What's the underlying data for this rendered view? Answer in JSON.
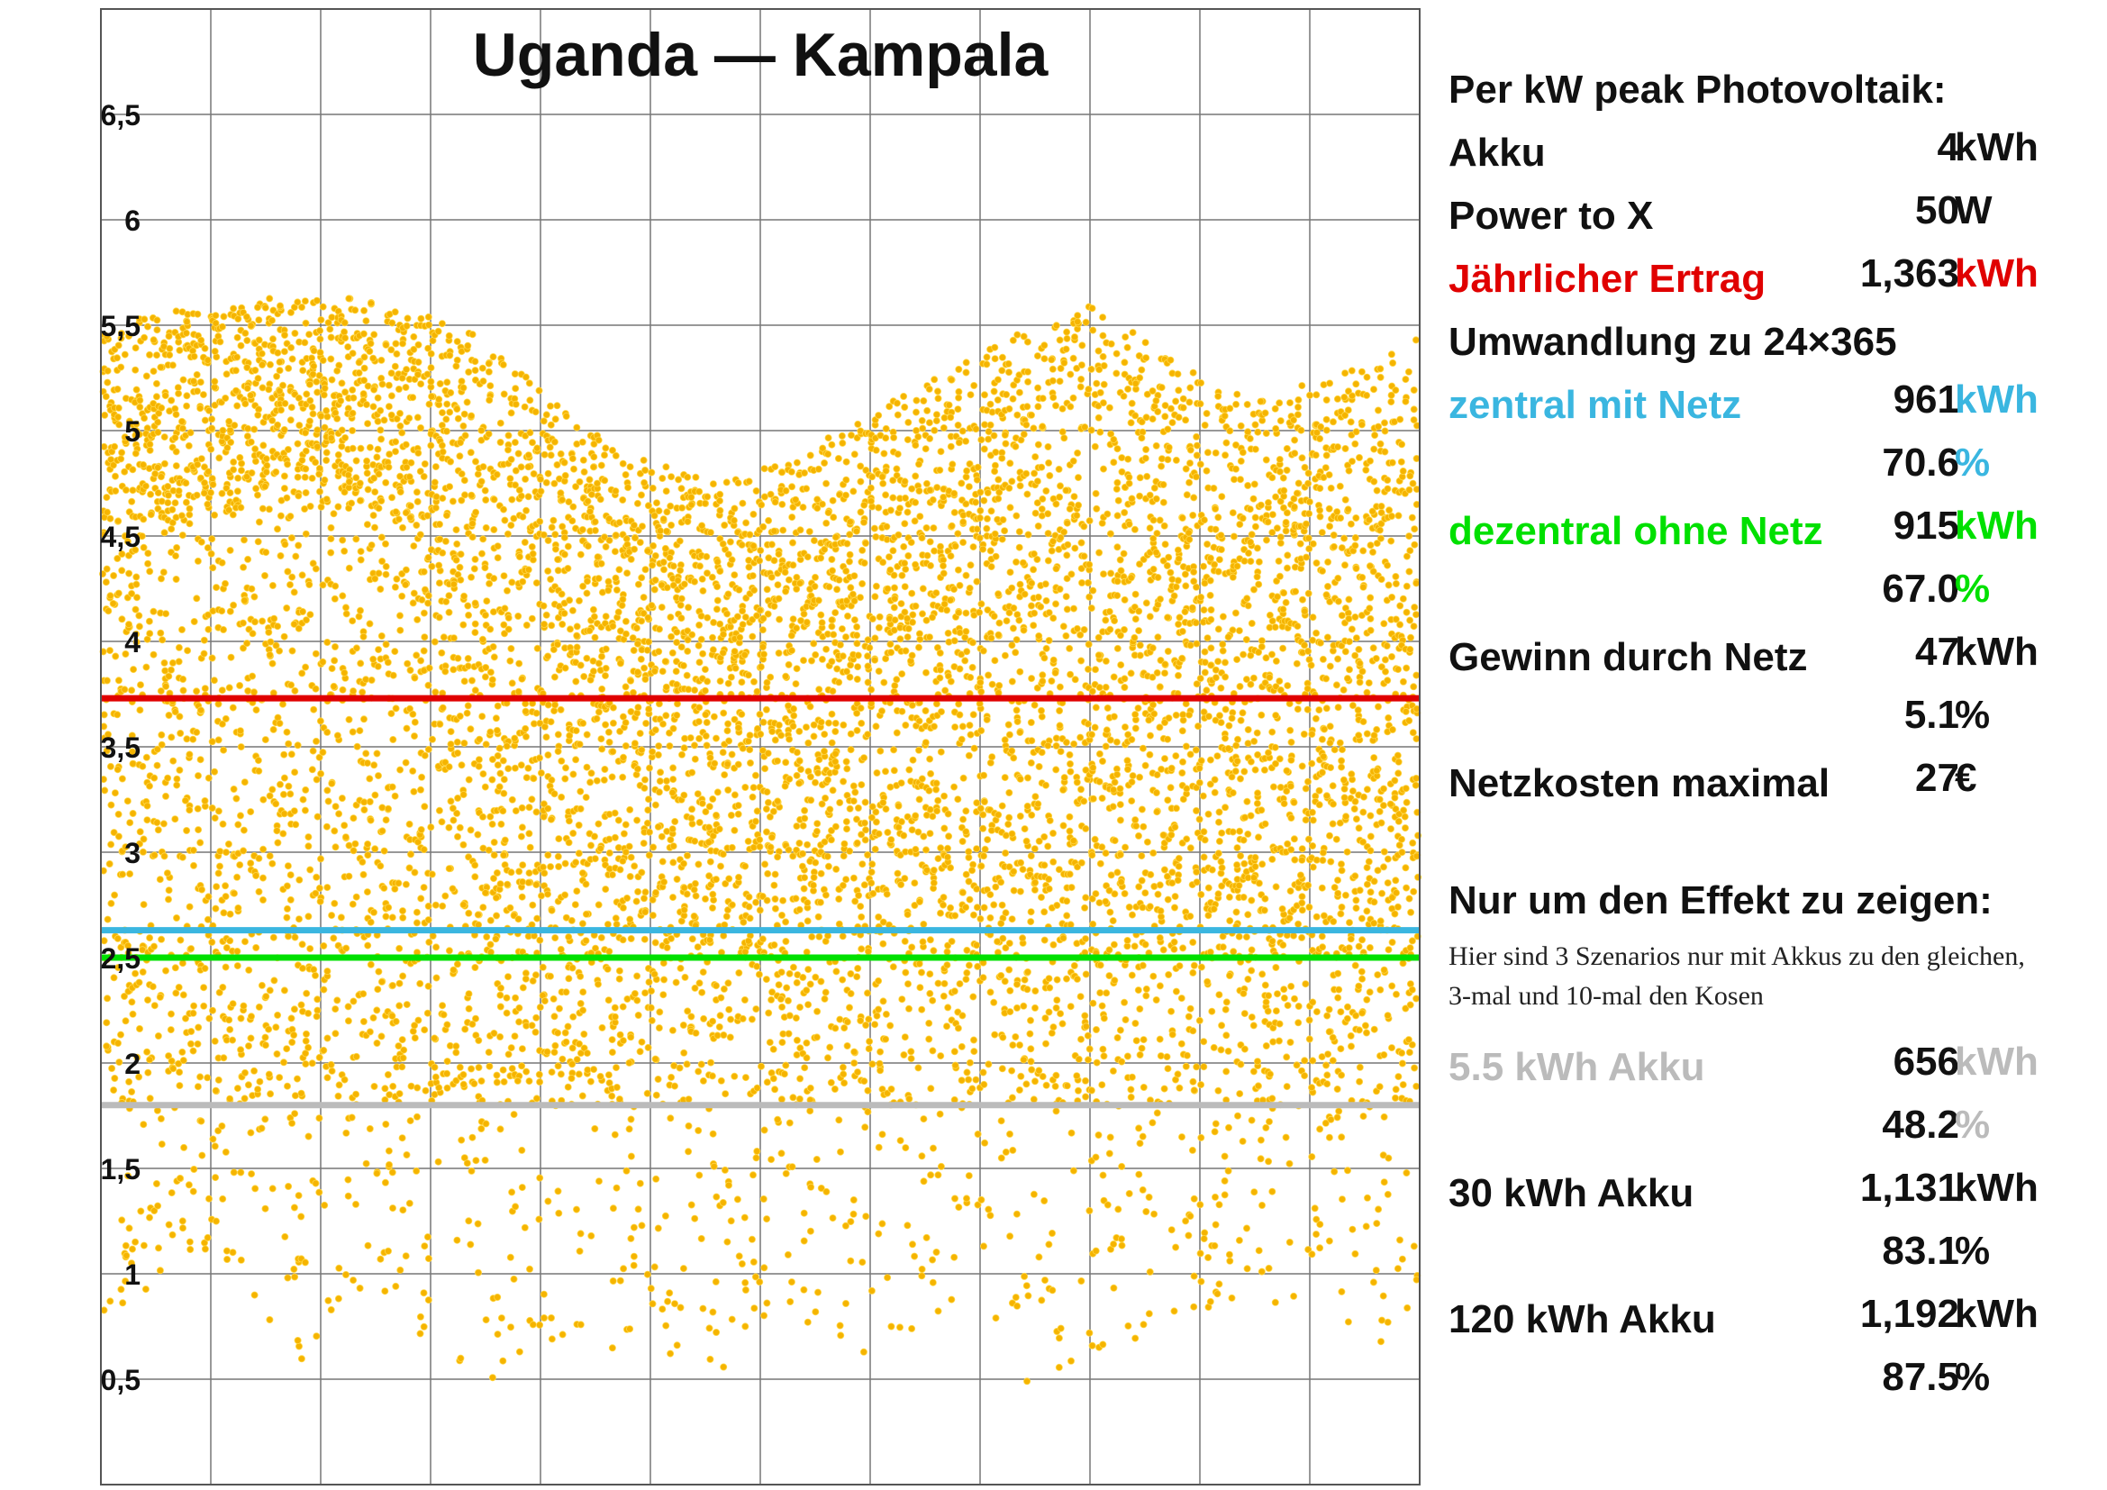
{
  "chart_data": {
    "type": "scatter",
    "title": "Uganda — Kampala",
    "x_grid_lines": 12,
    "ylim": [
      0,
      7
    ],
    "y_ticks": [
      0.5,
      1,
      1.5,
      2,
      2.5,
      3,
      3.5,
      4,
      4.5,
      5,
      5.5,
      6,
      6.5
    ],
    "y_tick_labels": [
      "0,5",
      "1",
      "1,5",
      "2",
      "2,5",
      "3",
      "3,5",
      "4",
      "4,5",
      "5",
      "5,5",
      "6",
      "6,5"
    ],
    "grid": true,
    "x": [],
    "y": [],
    "x_range": [
      1,
      365
    ],
    "daily_trend": {
      "points_per_day": 24,
      "day": [
        1,
        30,
        60,
        80,
        100,
        122,
        145,
        170,
        190,
        215,
        240,
        260,
        275,
        300,
        320,
        340,
        365
      ],
      "envelope_max": [
        5.5,
        5.6,
        5.65,
        5.6,
        5.5,
        5.2,
        4.9,
        4.75,
        4.85,
        5.1,
        5.35,
        5.5,
        5.6,
        5.3,
        5.15,
        5.25,
        5.45
      ],
      "dense_band_low": [
        4.5,
        4.6,
        4.7,
        4.6,
        4.2,
        3.9,
        3.8,
        3.7,
        3.8,
        3.9,
        4.0,
        4.0,
        4.0,
        3.9,
        3.8,
        3.8,
        4.0
      ],
      "sparse_min": [
        0.75,
        1.1,
        0.5,
        0.9,
        0.35,
        0.7,
        0.6,
        0.5,
        0.8,
        0.5,
        0.9,
        0.35,
        0.5,
        0.8,
        0.9,
        0.75,
        0.6
      ]
    },
    "reference_lines": [
      {
        "y": 3.73,
        "color": "#e00000"
      },
      {
        "y": 2.63,
        "color": "#3ab6e0"
      },
      {
        "y": 2.5,
        "color": "#00e000"
      },
      {
        "y": 1.8,
        "color": "#bbbbbb"
      }
    ],
    "point_color": "#f5b400",
    "point_stroke": "#ffd84a"
  },
  "panel": {
    "rows": [
      {
        "type": "heading",
        "text": "Per kW peak Photovoltaik:",
        "color": "#111111"
      },
      {
        "type": "row",
        "label": "Akku",
        "value": "4",
        "unit": "kWh",
        "label_color": "#111111",
        "value_color": "#111111",
        "unit_color": "#111111"
      },
      {
        "type": "row",
        "label": "Power to X",
        "value": "50",
        "unit": "W",
        "label_color": "#111111",
        "value_color": "#111111",
        "unit_color": "#111111"
      },
      {
        "type": "row",
        "label": "Jährlicher Ertrag",
        "value": "1,363",
        "unit": "kWh",
        "label_color": "#e00000",
        "value_color": "#111111",
        "unit_color": "#e00000"
      },
      {
        "type": "heading",
        "text": "Umwandlung zu 24×365",
        "color": "#111111"
      },
      {
        "type": "row",
        "label": "zentral mit Netz",
        "value": "961",
        "unit": "kWh",
        "label_color": "#3ab6e0",
        "value_color": "#111111",
        "unit_color": "#3ab6e0"
      },
      {
        "type": "row",
        "label": "",
        "value": "70.6",
        "unit": "%",
        "label_color": "#111111",
        "value_color": "#111111",
        "unit_color": "#3ab6e0"
      },
      {
        "type": "row",
        "label": "dezentral ohne Netz",
        "value": "915",
        "unit": "kWh",
        "label_color": "#00e000",
        "value_color": "#111111",
        "unit_color": "#00e000"
      },
      {
        "type": "row",
        "label": "",
        "value": "67.0",
        "unit": "%",
        "label_color": "#111111",
        "value_color": "#111111",
        "unit_color": "#00e000"
      },
      {
        "type": "row",
        "label": "Gewinn durch Netz",
        "value": "47",
        "unit": "kWh",
        "label_color": "#111111",
        "value_color": "#111111",
        "unit_color": "#111111"
      },
      {
        "type": "row",
        "label": "",
        "value": "5.1",
        "unit": "%",
        "label_color": "#111111",
        "value_color": "#111111",
        "unit_color": "#111111"
      },
      {
        "type": "row",
        "label": "Netzkosten maximal",
        "value": "27",
        "unit": "€",
        "label_color": "#111111",
        "value_color": "#111111",
        "unit_color": "#111111"
      },
      {
        "type": "heading",
        "text": "Nur um den Effekt zu zeigen:",
        "color": "#111111"
      },
      {
        "type": "note",
        "text": "Hier sind 3 Szenarios nur mit Akkus zu den gleichen, 3-mal und 10-mal den Kosen"
      },
      {
        "type": "row",
        "label": "5.5 kWh Akku",
        "value": "656",
        "unit": "kWh",
        "label_color": "#bbbbbb",
        "value_color": "#111111",
        "unit_color": "#bbbbbb"
      },
      {
        "type": "row",
        "label": "",
        "value": "48.2",
        "unit": "%",
        "label_color": "#111111",
        "value_color": "#111111",
        "unit_color": "#bbbbbb"
      },
      {
        "type": "row",
        "label": "30 kWh Akku",
        "value": "1,131",
        "unit": "kWh",
        "label_color": "#111111",
        "value_color": "#111111",
        "unit_color": "#111111"
      },
      {
        "type": "row",
        "label": "",
        "value": "83.1",
        "unit": "%",
        "label_color": "#111111",
        "value_color": "#111111",
        "unit_color": "#111111"
      },
      {
        "type": "row",
        "label": "120 kWh Akku",
        "value": "1,192",
        "unit": "kWh",
        "label_color": "#111111",
        "value_color": "#111111",
        "unit_color": "#111111"
      },
      {
        "type": "row",
        "label": "",
        "value": "87.5",
        "unit": "%",
        "label_color": "#111111",
        "value_color": "#111111",
        "unit_color": "#111111"
      }
    ]
  }
}
